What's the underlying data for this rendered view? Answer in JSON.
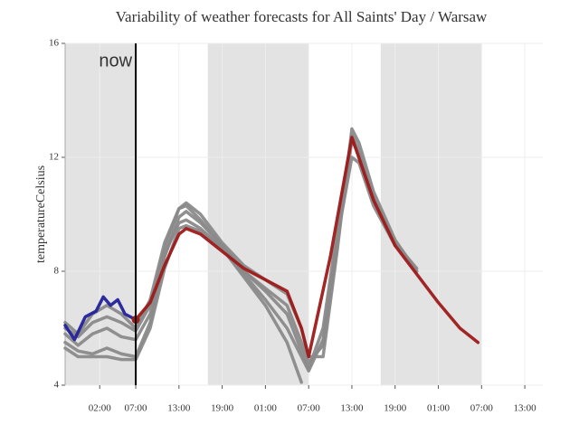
{
  "chart_data": {
    "type": "line",
    "title": "Variability of weather forecasts for All Saints' Day / Warsaw",
    "y_label": "temperatureCelsius",
    "xlim": [
      -2.8,
      63.5
    ],
    "ylim": [
      4,
      16
    ],
    "xticks": [
      {
        "value": 2,
        "label": "02:00"
      },
      {
        "value": 7,
        "label": "07:00"
      },
      {
        "value": 13,
        "label": "13:00"
      },
      {
        "value": 19,
        "label": "19:00"
      },
      {
        "value": 25,
        "label": "01:00"
      },
      {
        "value": 31,
        "label": "07:00"
      },
      {
        "value": 37,
        "label": "13:00"
      },
      {
        "value": 43,
        "label": "19:00"
      },
      {
        "value": 49,
        "label": "01:00"
      },
      {
        "value": 55,
        "label": "07:00"
      },
      {
        "value": 61,
        "label": "13:00"
      }
    ],
    "yticks": [
      4,
      8,
      12,
      16
    ],
    "grid": true,
    "shaded_regions": [
      [
        -2.8,
        7
      ],
      [
        17,
        31
      ],
      [
        41,
        55
      ]
    ],
    "shade_color": "#e3e3e3",
    "now_x": 7,
    "now_label": "now",
    "series": [
      {
        "color": "#8a8a8a",
        "x": [
          -2.8,
          -1,
          1,
          3,
          5,
          7,
          9,
          11,
          13,
          14,
          16,
          19,
          22,
          25,
          28,
          30,
          31,
          33,
          35,
          37,
          38,
          40,
          43,
          46,
          49,
          52
        ],
        "values": [
          6.0,
          5.7,
          6.2,
          6.4,
          6.2,
          5.9,
          6.8,
          8.8,
          10.2,
          10.4,
          10.0,
          9.0,
          8.2,
          7.7,
          7.2,
          6.0,
          5.0,
          5.0,
          8.8,
          13.0,
          12.5,
          10.8,
          9.1,
          8.0,
          null,
          null
        ]
      },
      {
        "color": "#8a8a8a",
        "x": [
          -2.8,
          -1,
          1,
          3,
          5,
          7,
          9,
          11,
          13,
          14,
          16,
          19,
          22,
          25,
          28,
          30,
          31,
          33,
          35,
          37,
          38,
          40,
          43,
          46,
          49,
          52
        ],
        "values": [
          5.5,
          5.2,
          5.1,
          5.3,
          5.1,
          5.0,
          6.2,
          8.5,
          9.9,
          10.1,
          9.7,
          8.9,
          8.0,
          7.3,
          6.5,
          5.2,
          4.6,
          6.0,
          9.5,
          12.8,
          12.2,
          10.5,
          9.0,
          8.1,
          null,
          null
        ]
      },
      {
        "color": "#8a8a8a",
        "x": [
          -2.8,
          -1,
          1,
          3,
          5,
          7,
          9,
          11,
          13,
          14,
          16,
          19,
          22,
          25,
          28,
          30,
          31,
          33,
          35,
          37,
          38,
          40,
          43,
          46,
          49,
          52
        ],
        "values": [
          5.8,
          5.4,
          5.8,
          6.0,
          5.7,
          5.6,
          6.5,
          8.6,
          9.7,
          9.8,
          9.5,
          8.8,
          7.9,
          7.0,
          6.0,
          5.0,
          4.5,
          5.6,
          9.2,
          12.0,
          11.8,
          10.3,
          8.9,
          null,
          null,
          null
        ]
      },
      {
        "color": "#8a8a8a",
        "x": [
          -2.8,
          -1,
          1,
          3,
          5,
          7,
          9,
          11,
          13,
          14,
          16,
          19,
          22,
          25,
          28,
          30,
          31,
          33,
          35,
          37,
          38,
          40,
          43,
          46,
          49,
          52
        ],
        "values": [
          5.3,
          5.0,
          5.0,
          5.0,
          4.9,
          4.9,
          6.0,
          8.1,
          9.5,
          9.6,
          9.4,
          8.8,
          7.8,
          6.8,
          5.5,
          4.1,
          null,
          null,
          null,
          null,
          null,
          null,
          null,
          null,
          null,
          null
        ]
      },
      {
        "color": "#8a8a8a",
        "x": [
          -2.8,
          -1,
          1,
          3,
          5,
          7,
          9,
          11,
          13,
          14,
          16,
          19,
          22,
          25,
          28,
          30,
          31,
          33,
          35,
          37,
          38,
          40,
          43,
          46,
          49,
          52
        ],
        "values": [
          6.2,
          5.8,
          6.5,
          6.8,
          6.5,
          6.0,
          7.0,
          9.0,
          10.2,
          10.3,
          9.8,
          8.9,
          8.0,
          7.4,
          6.8,
          5.5,
          4.8,
          5.4,
          9.0,
          12.6,
          12.1,
          10.6,
          9.0,
          8.0,
          null,
          null
        ]
      },
      {
        "color": "#22229a",
        "x": [
          -2.8,
          -1.5,
          0,
          1.5,
          2.5,
          3.5,
          4.5,
          5.5,
          7
        ],
        "values": [
          6.1,
          5.6,
          6.4,
          6.6,
          7.1,
          6.8,
          7.0,
          6.5,
          6.3
        ]
      },
      {
        "color": "#9e1a1a",
        "x": [
          7,
          9,
          11,
          13,
          14,
          16,
          19,
          22,
          25,
          28,
          30,
          31,
          34,
          37,
          40,
          43,
          46,
          49,
          52,
          54.5
        ],
        "values": [
          6.3,
          6.9,
          8.2,
          9.3,
          9.5,
          9.3,
          8.7,
          8.1,
          7.7,
          7.3,
          6.0,
          5.0,
          8.5,
          12.7,
          10.5,
          8.9,
          7.9,
          6.9,
          6.0,
          5.5
        ]
      }
    ]
  }
}
